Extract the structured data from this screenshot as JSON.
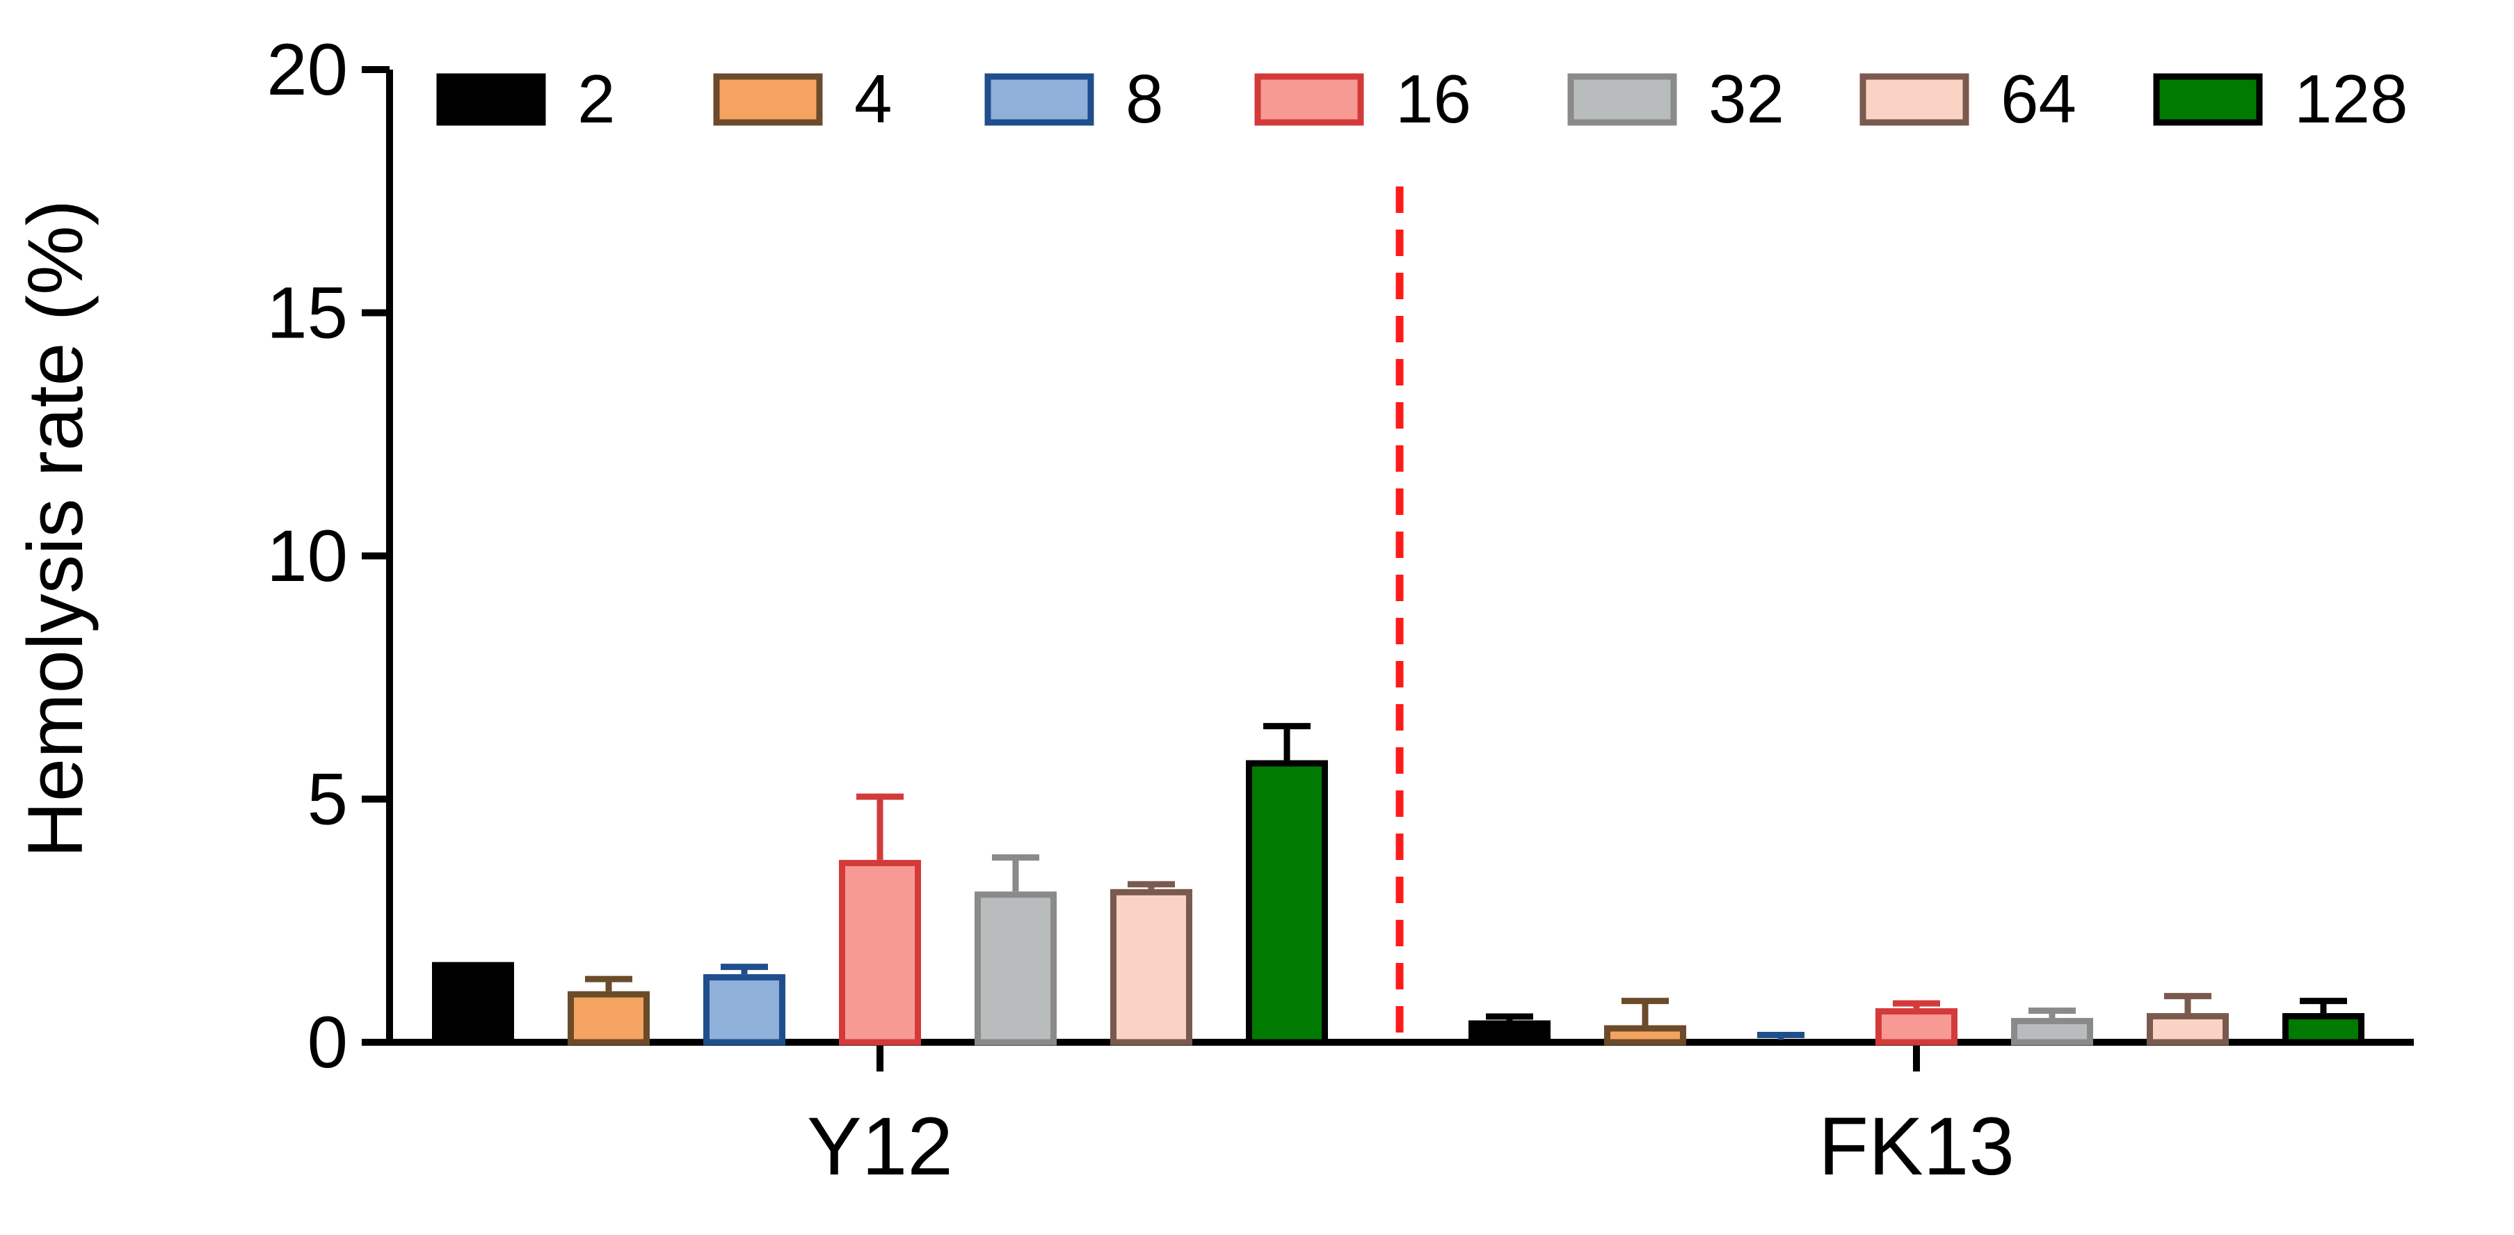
{
  "chart_data": {
    "type": "bar",
    "ylabel": "Hemolysis rate (%)",
    "xlabel": "",
    "ylim": [
      0,
      20
    ],
    "yticks": [
      "0",
      "5",
      "10",
      "15",
      "20"
    ],
    "categories": [
      "Y12",
      "FK13"
    ],
    "grid": false,
    "legend_position": "top",
    "separator": {
      "style": "dashed",
      "color": "#ff1a1a"
    },
    "series": [
      {
        "name": "2",
        "fill": "#000000",
        "stroke": "#000000",
        "values": [
          1.65,
          0.45
        ],
        "errors": [
          0.0,
          0.08
        ]
      },
      {
        "name": "4",
        "fill": "#f4a460",
        "stroke": "#6b4b2a",
        "values": [
          1.05,
          0.35
        ],
        "errors": [
          0.25,
          0.5
        ]
      },
      {
        "name": "8",
        "fill": "#8fb0d9",
        "stroke": "#1f4e8c",
        "values": [
          1.4,
          0.05
        ],
        "errors": [
          0.15,
          0.1
        ]
      },
      {
        "name": "16",
        "fill": "#f89a94",
        "stroke": "#d33a3a",
        "values": [
          3.75,
          0.7
        ],
        "errors": [
          1.3,
          0.1
        ]
      },
      {
        "name": "32",
        "fill": "#b9bcbd",
        "stroke": "#8a8a8a",
        "values": [
          3.1,
          0.5
        ],
        "errors": [
          0.7,
          0.15
        ]
      },
      {
        "name": "64",
        "fill": "#fbd3c4",
        "stroke": "#7a5a4e",
        "values": [
          3.15,
          0.6
        ],
        "errors": [
          0.1,
          0.35
        ]
      },
      {
        "name": "128",
        "fill": "#007a00",
        "stroke": "#000000",
        "values": [
          5.8,
          0.6
        ],
        "errors": [
          0.7,
          0.25
        ]
      }
    ]
  }
}
